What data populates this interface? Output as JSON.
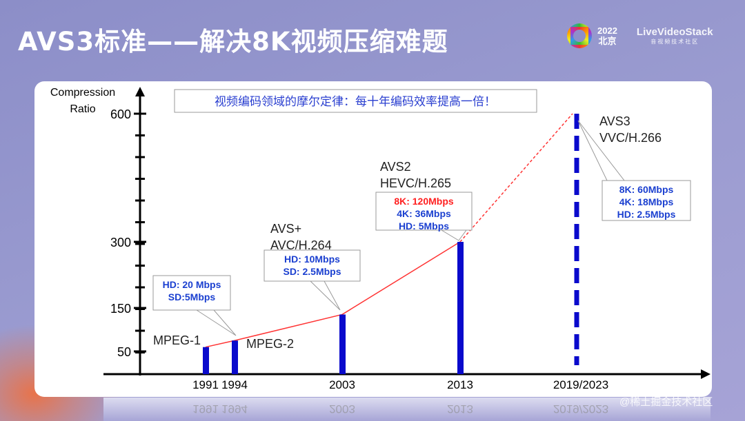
{
  "title": "AVS3标准——解决8K视频压缩难题",
  "logo": {
    "year": "2022",
    "city": "北京",
    "brand": "LiveVideoStack",
    "brand_sub": "音视频技术社区"
  },
  "watermark": "@稀土掘金技术社区",
  "chart_data": {
    "type": "bar",
    "title": "视频编码领域的摩尔定律：每十年编码效率提高一倍！",
    "ylabel": "Compression Ratio",
    "xlabel": "",
    "yticks": [
      50,
      150,
      300,
      600
    ],
    "ylim": [
      0,
      650
    ],
    "categories": [
      "1991",
      "1994",
      "2003",
      "2013",
      "2019/2023"
    ],
    "values": [
      60,
      75,
      135,
      300,
      600
    ],
    "bar_color": "#0a0acc",
    "trend_color": "#ff3333",
    "standards": [
      "MPEG-1",
      "MPEG-2",
      "AVS+\nAVC/H.264",
      "AVS2\nHEVC/H.265",
      "AVS3\nVVC/H.266"
    ],
    "callouts": [
      {
        "lines": [
          {
            "text": "HD: 20 Mbps",
            "color": "#1a3fd0"
          },
          {
            "text": "SD:5Mbps",
            "color": "#1a3fd0"
          }
        ]
      },
      {
        "lines": [
          {
            "text": "HD: 10Mbps",
            "color": "#1a3fd0"
          },
          {
            "text": "SD: 2.5Mbps",
            "color": "#1a3fd0"
          }
        ]
      },
      {
        "lines": [
          {
            "text": "8K: 120Mbps",
            "color": "#ff2020"
          },
          {
            "text": "4K: 36Mbps",
            "color": "#1a3fd0"
          },
          {
            "text": "HD: 5Mbps",
            "color": "#1a3fd0"
          }
        ]
      },
      {
        "lines": [
          {
            "text": "8K: 60Mbps",
            "color": "#1a3fd0"
          },
          {
            "text": "4K: 18Mbps",
            "color": "#1a3fd0"
          },
          {
            "text": "HD: 2.5Mbps",
            "color": "#1a3fd0"
          }
        ]
      }
    ]
  }
}
